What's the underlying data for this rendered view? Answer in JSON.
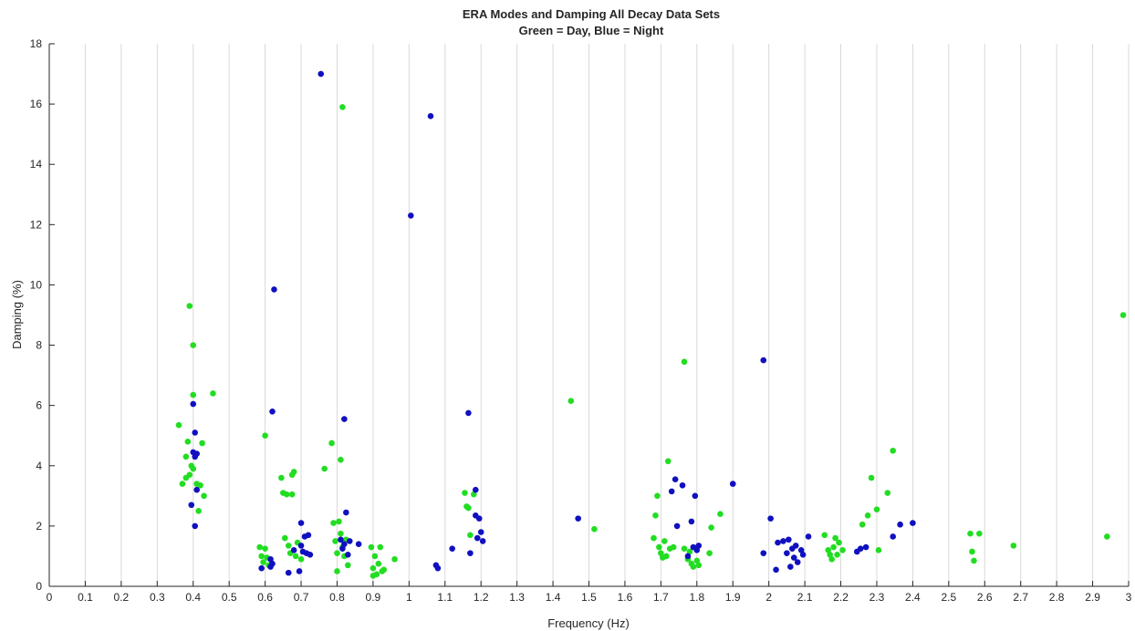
{
  "chart_data": {
    "type": "scatter",
    "title": "ERA Modes and Damping All Decay Data Sets",
    "subtitle": "Green = Day, Blue = Night",
    "xlabel": "Frequency (Hz)",
    "ylabel": "Damping (%)",
    "xlim": [
      0,
      3
    ],
    "ylim": [
      0,
      18
    ],
    "x_ticks": [
      "0",
      "0.1",
      "0.2",
      "0.3",
      "0.4",
      "0.5",
      "0.6",
      "0.7",
      "0.8",
      "0.9",
      "1",
      "1.1",
      "1.2",
      "1.3",
      "1.4",
      "1.5",
      "1.6",
      "1.7",
      "1.8",
      "1.9",
      "2",
      "2.1",
      "2.2",
      "2.3",
      "2.4",
      "2.5",
      "2.6",
      "2.7",
      "2.8",
      "2.9",
      "3"
    ],
    "y_ticks": [
      "0",
      "2",
      "4",
      "6",
      "8",
      "10",
      "12",
      "14",
      "16",
      "18"
    ],
    "x_tick_values": [
      0,
      0.1,
      0.2,
      0.3,
      0.4,
      0.5,
      0.6,
      0.7,
      0.8,
      0.9,
      1,
      1.1,
      1.2,
      1.3,
      1.4,
      1.5,
      1.6,
      1.7,
      1.8,
      1.9,
      2,
      2.1,
      2.2,
      2.3,
      2.4,
      2.5,
      2.6,
      2.7,
      2.8,
      2.9,
      3
    ],
    "y_tick_values": [
      0,
      2,
      4,
      6,
      8,
      10,
      12,
      14,
      16,
      18
    ],
    "grid": "vertical",
    "colors": {
      "day": "#22dd22",
      "night": "#1010c0",
      "grid": "#d9d9d9",
      "axis": "#262626"
    },
    "series": [
      {
        "color": "#22dd22",
        "points": [
          [
            0.36,
            5.35
          ],
          [
            0.37,
            3.4
          ],
          [
            0.38,
            4.3
          ],
          [
            0.38,
            3.6
          ],
          [
            0.385,
            4.8
          ],
          [
            0.39,
            9.3
          ],
          [
            0.39,
            3.7
          ],
          [
            0.395,
            4.0
          ],
          [
            0.4,
            8.0
          ],
          [
            0.4,
            6.35
          ],
          [
            0.4,
            3.9
          ],
          [
            0.41,
            3.4
          ],
          [
            0.415,
            2.5
          ],
          [
            0.42,
            3.35
          ],
          [
            0.425,
            4.75
          ],
          [
            0.43,
            3.0
          ],
          [
            0.455,
            6.4
          ],
          [
            0.585,
            1.3
          ],
          [
            0.59,
            1.0
          ],
          [
            0.595,
            0.8
          ],
          [
            0.6,
            5.0
          ],
          [
            0.6,
            1.25
          ],
          [
            0.605,
            0.95
          ],
          [
            0.61,
            0.7
          ],
          [
            0.645,
            3.6
          ],
          [
            0.65,
            3.1
          ],
          [
            0.655,
            1.6
          ],
          [
            0.66,
            3.05
          ],
          [
            0.665,
            1.35
          ],
          [
            0.67,
            1.1
          ],
          [
            0.675,
            3.7
          ],
          [
            0.675,
            3.05
          ],
          [
            0.68,
            3.8
          ],
          [
            0.685,
            1.0
          ],
          [
            0.69,
            1.45
          ],
          [
            0.7,
            0.9
          ],
          [
            0.765,
            3.9
          ],
          [
            0.785,
            4.75
          ],
          [
            0.79,
            2.1
          ],
          [
            0.795,
            1.5
          ],
          [
            0.8,
            1.1
          ],
          [
            0.8,
            0.5
          ],
          [
            0.805,
            2.15
          ],
          [
            0.81,
            4.2
          ],
          [
            0.81,
            1.75
          ],
          [
            0.815,
            15.9
          ],
          [
            0.815,
            1.3
          ],
          [
            0.82,
            1.0
          ],
          [
            0.825,
            1.55
          ],
          [
            0.83,
            0.7
          ],
          [
            0.895,
            1.3
          ],
          [
            0.9,
            0.35
          ],
          [
            0.9,
            0.6
          ],
          [
            0.905,
            1.0
          ],
          [
            0.91,
            0.4
          ],
          [
            0.915,
            0.75
          ],
          [
            0.92,
            1.3
          ],
          [
            0.925,
            0.5
          ],
          [
            0.93,
            0.55
          ],
          [
            0.96,
            0.9
          ],
          [
            1.155,
            3.1
          ],
          [
            1.16,
            2.65
          ],
          [
            1.165,
            2.6
          ],
          [
            1.17,
            1.7
          ],
          [
            1.18,
            3.05
          ],
          [
            1.45,
            6.15
          ],
          [
            1.515,
            1.9
          ],
          [
            1.68,
            1.6
          ],
          [
            1.685,
            2.35
          ],
          [
            1.69,
            3.0
          ],
          [
            1.695,
            1.3
          ],
          [
            1.7,
            1.1
          ],
          [
            1.705,
            0.95
          ],
          [
            1.71,
            1.5
          ],
          [
            1.715,
            1.0
          ],
          [
            1.72,
            4.15
          ],
          [
            1.725,
            1.25
          ],
          [
            1.735,
            1.3
          ],
          [
            1.765,
            7.45
          ],
          [
            1.765,
            1.25
          ],
          [
            1.775,
            0.9
          ],
          [
            1.78,
            1.15
          ],
          [
            1.785,
            0.75
          ],
          [
            1.79,
            0.65
          ],
          [
            1.8,
            0.85
          ],
          [
            1.805,
            0.7
          ],
          [
            1.835,
            1.1
          ],
          [
            1.84,
            1.95
          ],
          [
            1.865,
            2.4
          ],
          [
            2.155,
            1.7
          ],
          [
            2.165,
            1.2
          ],
          [
            2.17,
            1.05
          ],
          [
            2.175,
            0.9
          ],
          [
            2.18,
            1.3
          ],
          [
            2.185,
            1.6
          ],
          [
            2.19,
            1.05
          ],
          [
            2.195,
            1.45
          ],
          [
            2.205,
            1.2
          ],
          [
            2.26,
            2.05
          ],
          [
            2.275,
            2.35
          ],
          [
            2.285,
            3.6
          ],
          [
            2.3,
            2.55
          ],
          [
            2.305,
            1.2
          ],
          [
            2.33,
            3.1
          ],
          [
            2.345,
            4.5
          ],
          [
            2.56,
            1.75
          ],
          [
            2.565,
            1.15
          ],
          [
            2.57,
            0.85
          ],
          [
            2.585,
            1.75
          ],
          [
            2.68,
            1.35
          ],
          [
            2.94,
            1.65
          ],
          [
            2.985,
            9.0
          ]
        ]
      },
      {
        "color": "#1010c0",
        "points": [
          [
            0.395,
            2.7
          ],
          [
            0.4,
            6.05
          ],
          [
            0.4,
            4.45
          ],
          [
            0.405,
            5.1
          ],
          [
            0.405,
            4.3
          ],
          [
            0.405,
            2.0
          ],
          [
            0.41,
            4.4
          ],
          [
            0.41,
            3.2
          ],
          [
            0.59,
            0.6
          ],
          [
            0.615,
            0.9
          ],
          [
            0.615,
            0.65
          ],
          [
            0.62,
            0.75
          ],
          [
            0.62,
            5.8
          ],
          [
            0.625,
            9.85
          ],
          [
            0.665,
            0.45
          ],
          [
            0.68,
            1.2
          ],
          [
            0.695,
            0.5
          ],
          [
            0.7,
            2.1
          ],
          [
            0.7,
            1.35
          ],
          [
            0.705,
            1.15
          ],
          [
            0.71,
            1.65
          ],
          [
            0.715,
            1.1
          ],
          [
            0.72,
            1.7
          ],
          [
            0.725,
            1.05
          ],
          [
            0.755,
            17.0
          ],
          [
            0.81,
            1.55
          ],
          [
            0.815,
            1.25
          ],
          [
            0.82,
            5.55
          ],
          [
            0.82,
            1.4
          ],
          [
            0.825,
            2.45
          ],
          [
            0.83,
            1.05
          ],
          [
            0.835,
            1.5
          ],
          [
            0.86,
            1.4
          ],
          [
            1.005,
            12.3
          ],
          [
            1.06,
            15.6
          ],
          [
            1.075,
            0.7
          ],
          [
            1.08,
            0.6
          ],
          [
            1.12,
            1.25
          ],
          [
            1.165,
            5.75
          ],
          [
            1.17,
            1.1
          ],
          [
            1.185,
            3.2
          ],
          [
            1.185,
            2.35
          ],
          [
            1.19,
            1.6
          ],
          [
            1.195,
            2.25
          ],
          [
            1.2,
            1.8
          ],
          [
            1.205,
            1.5
          ],
          [
            1.47,
            2.25
          ],
          [
            1.73,
            3.15
          ],
          [
            1.74,
            3.55
          ],
          [
            1.745,
            2.0
          ],
          [
            1.76,
            3.35
          ],
          [
            1.775,
            1.0
          ],
          [
            1.785,
            2.15
          ],
          [
            1.79,
            1.3
          ],
          [
            1.795,
            3.0
          ],
          [
            1.8,
            1.2
          ],
          [
            1.805,
            1.35
          ],
          [
            1.9,
            3.4
          ],
          [
            1.985,
            7.5
          ],
          [
            1.985,
            1.1
          ],
          [
            2.005,
            2.25
          ],
          [
            2.02,
            0.55
          ],
          [
            2.025,
            1.45
          ],
          [
            2.04,
            1.5
          ],
          [
            2.05,
            1.1
          ],
          [
            2.055,
            1.55
          ],
          [
            2.06,
            0.65
          ],
          [
            2.065,
            1.25
          ],
          [
            2.07,
            0.95
          ],
          [
            2.075,
            1.35
          ],
          [
            2.08,
            0.8
          ],
          [
            2.09,
            1.2
          ],
          [
            2.095,
            1.05
          ],
          [
            2.11,
            1.65
          ],
          [
            2.245,
            1.15
          ],
          [
            2.255,
            1.25
          ],
          [
            2.27,
            1.3
          ],
          [
            2.345,
            1.65
          ],
          [
            2.365,
            2.05
          ],
          [
            2.4,
            2.1
          ]
        ]
      }
    ]
  }
}
